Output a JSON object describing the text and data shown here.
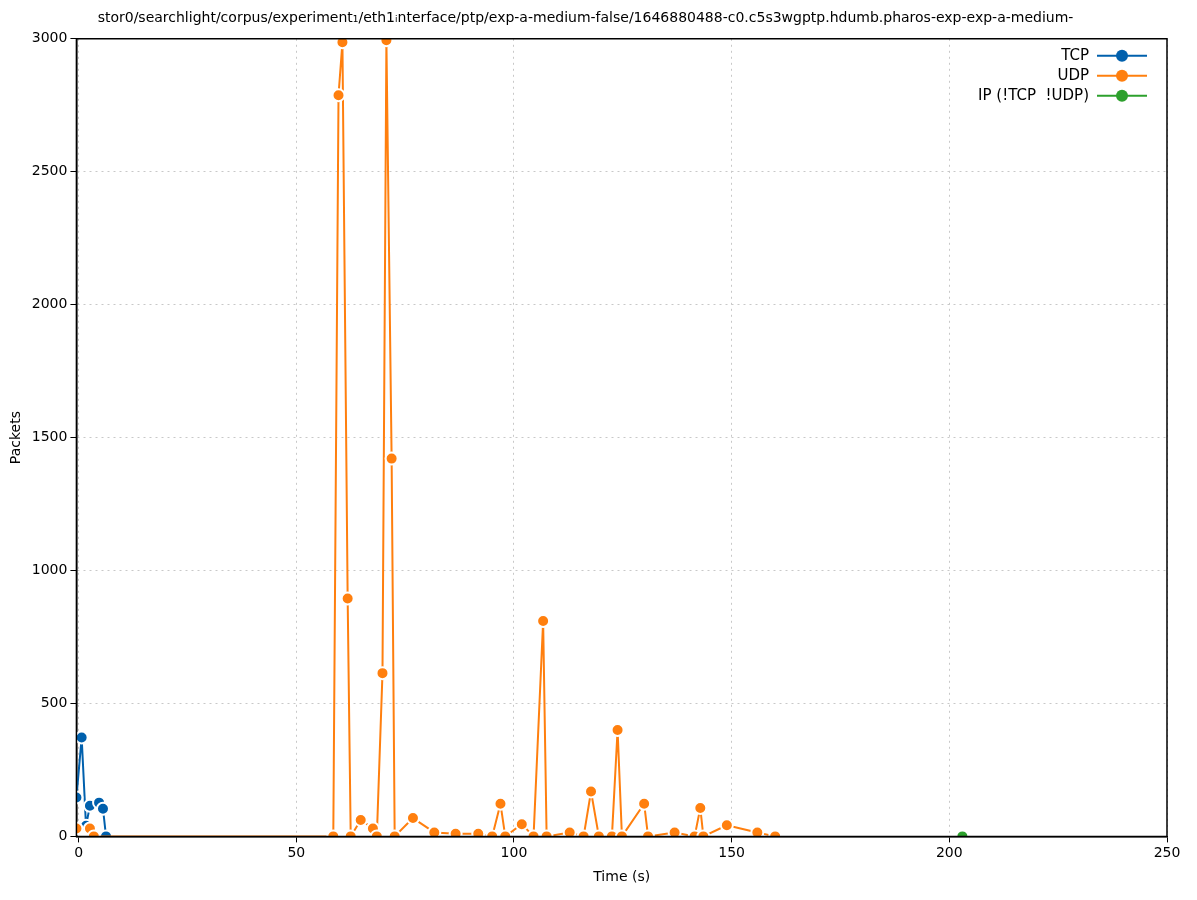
{
  "chart_data": {
    "type": "line",
    "title": "stor0/searchlight/corpus/experiment₁/eth1ᵢnterface/ptp/exp-a-medium-false/1646880488-c0.c5s3wgptp.hdumb.pharos-exp-exp-a-medium-",
    "xlabel": "Time (s)",
    "ylabel": "Packets",
    "xlim": [
      -0.5,
      250
    ],
    "xticks": [
      0,
      50,
      100,
      150,
      200,
      250
    ],
    "ylim": [
      0,
      3000
    ],
    "yticks": [
      0,
      500,
      1000,
      1500,
      2000,
      2500,
      3000
    ],
    "grid": true,
    "legend": "top right",
    "marker": "circle",
    "line_style": "solid",
    "series": [
      {
        "name": "TCP",
        "color": "#0060ad",
        "x": [
          -0.5,
          0.7,
          1.7,
          2.6,
          4.7,
          5.6,
          6.3
        ],
        "values": [
          146,
          372,
          40,
          115,
          127,
          104,
          0
        ]
      },
      {
        "name": "UDP",
        "color": "#ff7f0e",
        "x": [
          -0.5,
          2.6,
          3.5,
          58.5,
          59.7,
          60.6,
          61.8,
          62.5,
          64.8,
          67.6,
          68.5,
          69.8,
          70.7,
          71.9,
          72.6,
          76.8,
          81.7,
          86.6,
          91.8,
          95,
          96.9,
          98,
          101.8,
          104.5,
          106.7,
          107.5,
          112.8,
          116,
          117.7,
          119.5,
          122.5,
          123.8,
          124.8,
          129.9,
          130.8,
          136.9,
          141.5,
          142.8,
          143.5,
          148.9,
          155.9,
          160
        ],
        "values": [
          30,
          30,
          0,
          0,
          2788,
          2987,
          895,
          0,
          62,
          30,
          0,
          614,
          2995,
          1421,
          0,
          69,
          15,
          10,
          10,
          0,
          123,
          0,
          46,
          0,
          810,
          0,
          15,
          0,
          169,
          0,
          0,
          400,
          0,
          123,
          0,
          15,
          0,
          107,
          0,
          42,
          15,
          0
        ]
      },
      {
        "name": "IP (!TCP  !UDP)",
        "color": "#2ca02c",
        "x": [
          203
        ],
        "values": [
          0
        ]
      }
    ]
  }
}
